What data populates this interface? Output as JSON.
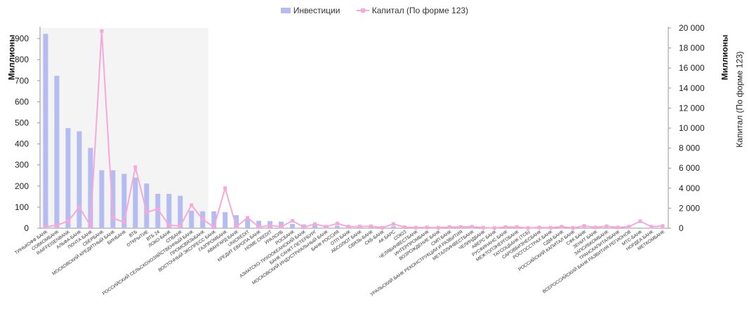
{
  "chart_data": {
    "type": "bar",
    "legend_placement": "top-center",
    "grid": false,
    "ylabel_left": "Миллионы",
    "ylabel_right": "Миллионы",
    "ylabel_right2": "Капитал (По форме 123)",
    "ylim_left": [
      0,
      950
    ],
    "ylim_right": [
      0,
      20000
    ],
    "yticks_left": [
      0,
      100,
      200,
      300,
      400,
      500,
      600,
      700,
      800,
      900
    ],
    "yticks_right": [
      0,
      2000,
      4000,
      6000,
      8000,
      10000,
      12000,
      14000,
      16000,
      18000,
      20000
    ],
    "ytick_labels_left": [
      "0",
      "100",
      "200",
      "300",
      "400",
      "500",
      "600",
      "700",
      "800",
      "900"
    ],
    "ytick_labels_right": [
      "0",
      "2 000",
      "4 000",
      "6 000",
      "8 000",
      "10 000",
      "12 000",
      "14 000",
      "16 000",
      "18 000",
      "20 000"
    ],
    "highlight_first_n": 15,
    "categories": [
      "ТИНЬКОФФ БАНК",
      "СОВКОМБАНК",
      "RAIFFEISENBANK",
      "АЛЬФА-БАНК",
      "ПОЧТА БАНК",
      "СБЕРБАНК",
      "МОСКОВСКИЙ КРЕДИТНЫЙ БАНК",
      "БИНБАНК",
      "ВТБ",
      "ОТКРЫТИЕ",
      "ВТБ 24",
      "ЛОКО-БАНК",
      "СПБАНК",
      "РОССИЙСКИЙ СЕЛЬСКОХОЗЯЙСТВЕННЫЙ БАНК",
      "ПРОМСВЯЗЬБАНК",
      "ВОСТОЧНЫЙ ЭКСПРЕСС БАНК",
      "ГАЗПРОМБАНК",
      "АВАНГАРД БАНК",
      "UNICREDIT",
      "КРЕДИТ ЕВРОПА БАНК",
      "HOME CREDIT",
      "УРАЛСИБ",
      "РОСБАНК",
      "АЗИАТСКО-ТИХООКЕАНСКИЙ БАНК",
      "БАНК САНКТ-ПЕТЕРБУРГ",
      "МОСКОВСКИЙ ИНДУСТРИАЛЬНЫЙ БАНК",
      "БАНК РОССИЯ",
      "ОТП БАНК",
      "АБСОЛЮТ БАНК",
      "СВЯЗЬ-БАНК",
      "СКБ-БАНК",
      "АК БАРС",
      "СОЮЗ",
      "ЧЕЛЯБИНВЕСТБАНК",
      "ИНТЕРПРОМБАНК",
      "ВОЗРОЖДЕНИЕ БАНК",
      "СМП БАНК",
      "УРАЛЬСКИЙ БАНК РЕКОНСТРУКЦИИ И РАЗВИТИЯ",
      "МЕТАЛЛИНВЕСТБАНК",
      "ЧЕЛИНДБАНК",
      "АВЕРС БАНК",
      "РУСФИНАНС БАНК",
      "МЕЖТОПЭНЕРГОБАНК",
      "ТАТСОЦБАНК (ТСБ)",
      "САРОВБИЗНЕСБАНК",
      "РОСГОССТРАХ БАНК",
      "СДМ-БАНК",
      "РОССИЙСКИЙ КАПИТАЛ БАНК",
      "СФК БАНК",
      "ЗЕНИТ БАНК",
      "ЗАПСИБКОМБАНК",
      "ТРАНСКАПИТАЛБАНК",
      "ВСЕРОССИЙСКИЙ БАНК РАЗВИТИЯ РЕГИОНОВ",
      "МТС-БАНК",
      "НОРДЕА БАНК",
      "МЕТКОМБАНК"
    ],
    "series": [
      {
        "name": "Инвестиции",
        "kind": "bar",
        "axis": "left",
        "color": "#b4bcf2",
        "values": [
          922,
          723,
          475,
          460,
          381,
          275,
          275,
          258,
          240,
          212,
          163,
          163,
          154,
          83,
          80,
          80,
          76,
          62,
          43,
          35,
          34,
          31,
          20,
          18,
          14,
          12,
          12,
          11,
          11,
          10,
          9,
          9,
          8,
          7,
          7,
          6,
          6,
          6,
          5,
          5,
          5,
          5,
          4,
          4,
          4,
          4,
          4,
          3,
          3,
          3,
          3,
          3,
          3,
          3,
          2,
          2
        ]
      },
      {
        "name": "Капитал (По форме 123)",
        "kind": "line",
        "axis": "right",
        "color": "#f7a8d8",
        "values": [
          120,
          300,
          700,
          2100,
          250,
          19700,
          1000,
          600,
          6100,
          1600,
          1900,
          300,
          220,
          2300,
          900,
          100,
          4000,
          150,
          1050,
          120,
          260,
          150,
          740,
          100,
          420,
          150,
          470,
          160,
          170,
          200,
          50,
          420,
          100,
          60,
          80,
          50,
          120,
          120,
          150,
          60,
          20,
          120,
          120,
          20,
          70,
          50,
          150,
          30,
          230,
          80,
          200,
          80,
          150,
          700,
          150,
          220
        ]
      }
    ]
  }
}
